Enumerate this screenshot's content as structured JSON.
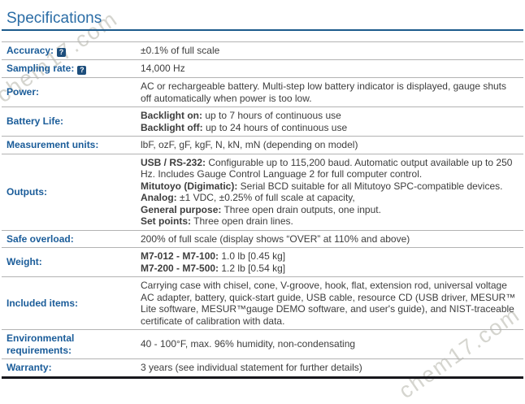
{
  "title": "Specifications",
  "watermark": {
    "text": "chem17.com",
    "color": "#d5d5cf"
  },
  "colors": {
    "title": "#2b6da6",
    "rule": "#1c5a8c",
    "label": "#1a5c99",
    "value": "#3d3d3d",
    "separator": "#b3b3b3",
    "bottom_border": "#17171c",
    "help_bg": "#1d4e7c"
  },
  "help_icon": {
    "glyph": "?"
  },
  "table": {
    "rows": [
      {
        "label": "Accuracy:",
        "help": true,
        "lines": [
          [
            {
              "t": "±0.1% of full scale"
            }
          ]
        ]
      },
      {
        "label": "Sampling rate:",
        "help": true,
        "lines": [
          [
            {
              "t": "14,000 Hz"
            }
          ]
        ]
      },
      {
        "label": "Power:",
        "help": false,
        "lines": [
          [
            {
              "t": "AC or rechargeable battery. Multi-step low battery indicator is displayed, gauge shuts off automatically when power is too low."
            }
          ]
        ]
      },
      {
        "label": "Battery Life:",
        "help": false,
        "lines": [
          [
            {
              "b": "Backlight on:"
            },
            {
              "t": " up to 7 hours of continuous use"
            }
          ],
          [
            {
              "b": "Backlight off:"
            },
            {
              "t": " up to 24 hours of continuous use"
            }
          ]
        ]
      },
      {
        "label": "Measurement units:",
        "help": false,
        "lines": [
          [
            {
              "t": "lbF, ozF, gF, kgF, N, kN, mN (depending on model)"
            }
          ]
        ]
      },
      {
        "label": "Outputs:",
        "help": false,
        "lines": [
          [
            {
              "b": "USB / RS-232:"
            },
            {
              "t": " Configurable up to 115,200 baud. Automatic output available up to 250 Hz. Includes Gauge Control Language 2 for full computer control."
            }
          ],
          [
            {
              "b": "Mitutoyo (Digimatic):"
            },
            {
              "t": " Serial BCD suitable for all Mitutoyo SPC-compatible devices."
            }
          ],
          [
            {
              "b": "Analog:"
            },
            {
              "t": " ±1 VDC, ±0.25% of full scale at capacity,"
            }
          ],
          [
            {
              "b": "General purpose:"
            },
            {
              "t": " Three open drain outputs, one input."
            }
          ],
          [
            {
              "b": "Set points:"
            },
            {
              "t": " Three open drain lines."
            }
          ]
        ]
      },
      {
        "label": "Safe overload:",
        "help": false,
        "lines": [
          [
            {
              "t": "200% of full scale (display shows “OVER” at 110% and above)"
            }
          ]
        ]
      },
      {
        "label": "Weight:",
        "help": false,
        "lines": [
          [
            {
              "b": "M7-012 - M7-100:"
            },
            {
              "t": " 1.0 lb [0.45 kg]"
            }
          ],
          [
            {
              "b": "M7-200 - M7-500:"
            },
            {
              "t": " 1.2 lb [0.54 kg]"
            }
          ]
        ]
      },
      {
        "label": "Included items:",
        "help": false,
        "lines": [
          [
            {
              "t": "Carrying case with chisel, cone, V-groove, hook, flat, extension rod, universal voltage AC adapter, battery, quick-start guide, USB cable, resource CD (USB driver, MESUR™ Lite software, MESUR™gauge DEMO software, and user's guide), and NIST-traceable certificate of calibration with data."
            }
          ]
        ]
      },
      {
        "label": "Environmental requirements:",
        "help": false,
        "lines": [
          [
            {
              "t": "40 - 100°F, max. 96% humidity, non-condensating"
            }
          ]
        ]
      },
      {
        "label": "Warranty:",
        "help": false,
        "lines": [
          [
            {
              "t": "3 years (see individual statement for further details)"
            }
          ]
        ]
      }
    ]
  }
}
